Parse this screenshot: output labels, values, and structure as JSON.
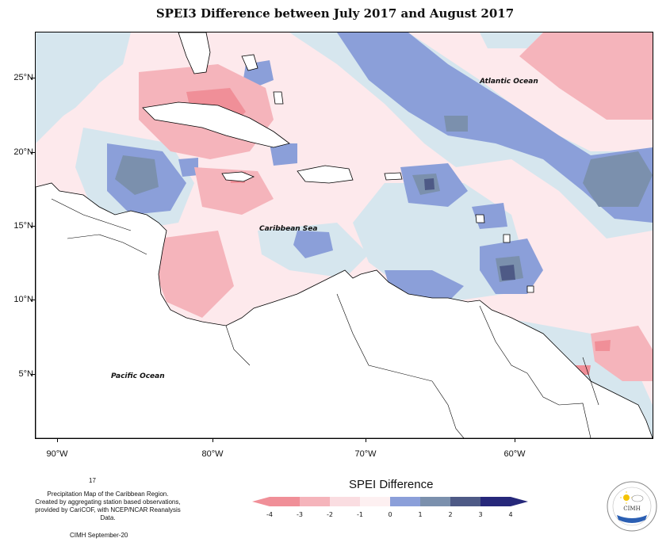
{
  "title": "SPEI3 Difference between July 2017 and August 2017",
  "map": {
    "labels": {
      "atlantic": "Atlantic Ocean",
      "caribbean": "Caribbean Sea",
      "pacific": "Pacific Ocean"
    },
    "lat_ticks": [
      "25°N",
      "20°N",
      "15°N",
      "10°N",
      "5°N"
    ],
    "lon_ticks": [
      "90°W",
      "80°W",
      "70°W",
      "60°W"
    ]
  },
  "footer": {
    "number": "17",
    "description_lines": [
      "Precipitation Map of the Caribbean Region.",
      "Created by aggregating station based observations,",
      "provided by CariCOF, with NCEP/NCAR Reanalysis Data."
    ],
    "credit": "CIMH September-20"
  },
  "legend": {
    "title": "SPEI Difference",
    "ticks": [
      "-4",
      "-3",
      "-2",
      "-1",
      "0",
      "1",
      "2",
      "3",
      "4"
    ],
    "colors": [
      "#f08f98",
      "#f5b4bb",
      "#fadde1",
      "#fdf0f1",
      "#d6e6ee",
      "#8b9fd9",
      "#7b90ad",
      "#4e5a86",
      "#26287a"
    ]
  },
  "logo": {
    "text": "CIMH"
  }
}
